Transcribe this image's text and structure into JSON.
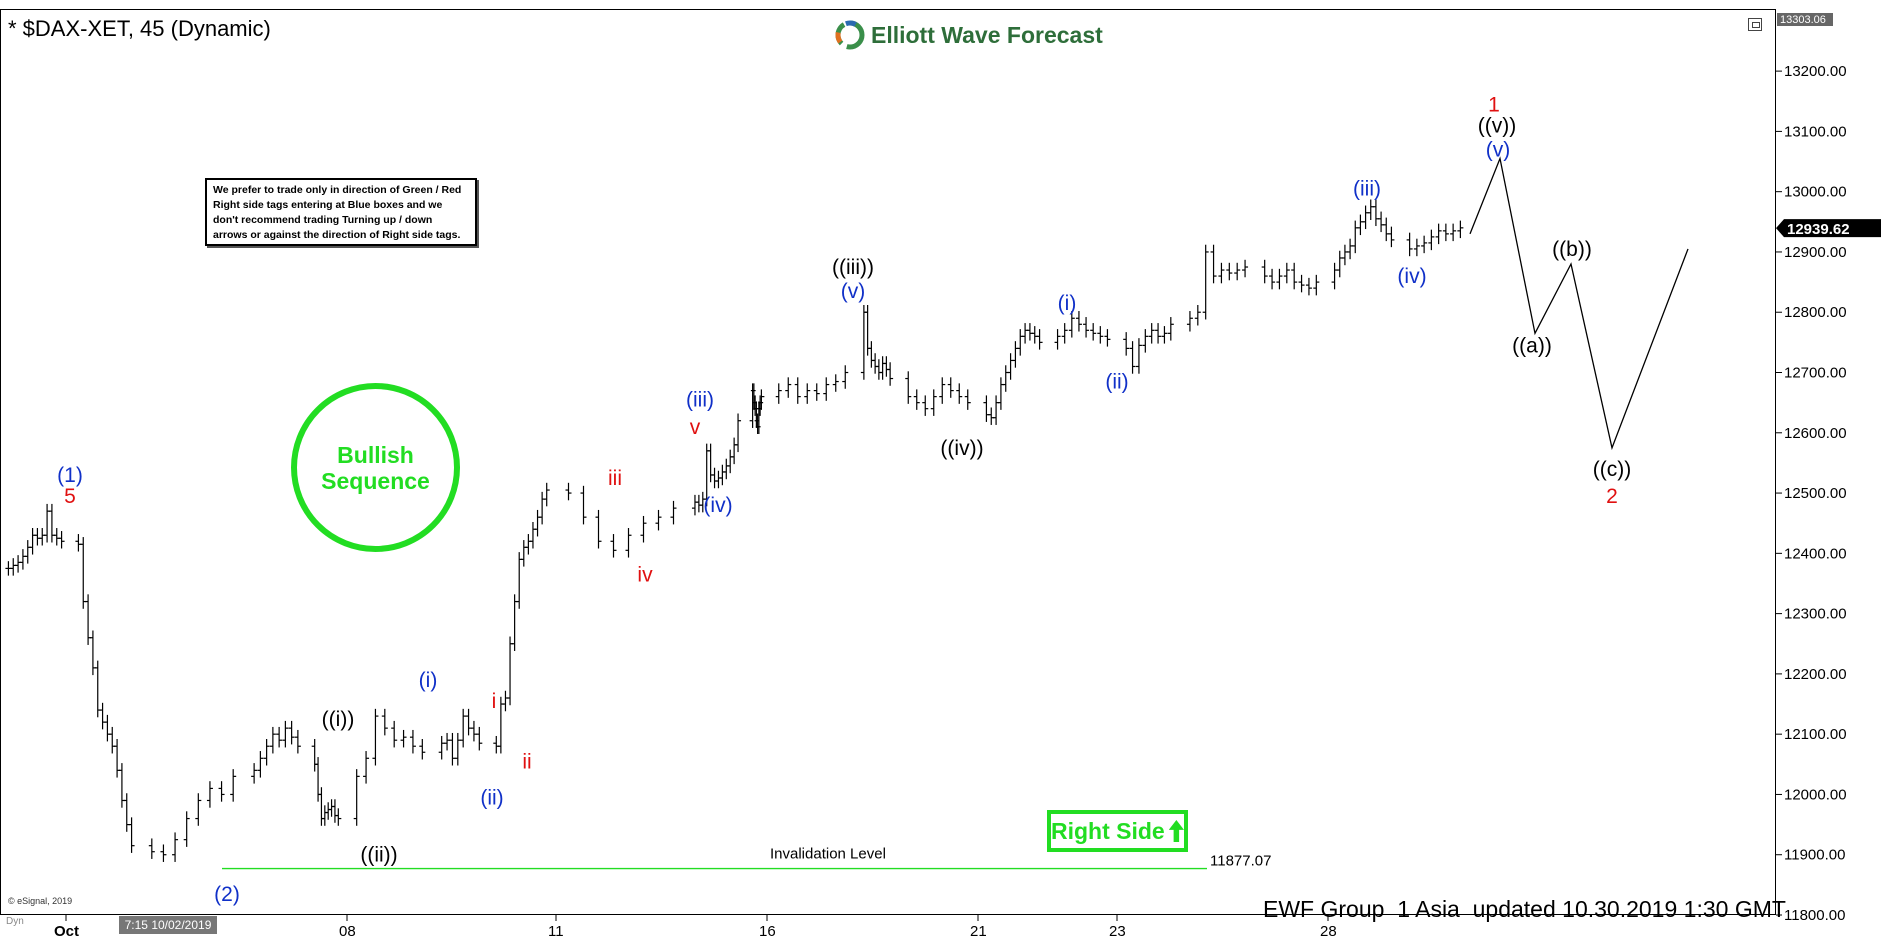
{
  "header": {
    "title": "* $DAX-XET, 45 (Dynamic)",
    "brand": "Elliott Wave Forecast"
  },
  "note": "We prefer to trade only in direction of Green / Red Right side tags entering at Blue boxes and we don't recommend trading Turning up / down arrows or against the direction of Right side tags.",
  "bullish": {
    "line1": "Bullish",
    "line2": "Sequence"
  },
  "right_side_label": "Right Side",
  "footer": "EWF Group  1 Asia  updated 10.30.2019 1:30 GMT",
  "copyright": "© eSignal, 2019",
  "dyn_label": "Dyn",
  "x_cursor_label": "7:15 10/02/2019",
  "colors": {
    "green": "#22dd22",
    "red": "#e01010",
    "blue": "#1030c8",
    "black": "#000000",
    "brand": "#2e6e3a"
  },
  "icons": [
    "ewf-logo-icon",
    "up-arrow-icon",
    "window-restore-icon"
  ],
  "chart_data": {
    "type": "ohlc",
    "symbol": "$DAX-XET",
    "timeframe": "45",
    "y_axis": {
      "range": [
        11800,
        13303.06
      ],
      "ticks": [
        "11800.00",
        "11900.00",
        "12000.00",
        "12100.00",
        "12200.00",
        "12300.00",
        "12400.00",
        "12500.00",
        "12600.00",
        "12700.00",
        "12800.00",
        "12900.00",
        "13000.00",
        "13100.00",
        "13200.00"
      ],
      "top_label": "13303.06",
      "last_price": "12939.62"
    },
    "x_axis": {
      "ticks": [
        "Oct",
        "08",
        "11",
        "16",
        "21",
        "23",
        "28"
      ]
    },
    "path": [
      [
        "2019-10-01",
        12375
      ],
      [
        "2019-10-01",
        12380
      ],
      [
        "2019-10-01",
        12385
      ],
      [
        "2019-10-01",
        12395
      ],
      [
        "2019-10-01",
        12410
      ],
      [
        "2019-10-01",
        12430
      ],
      [
        "2019-10-01",
        12425
      ],
      [
        "2019-10-01",
        12430
      ],
      [
        "2019-10-01",
        12470
      ],
      [
        "2019-10-01",
        12430
      ],
      [
        "2019-10-01",
        12425
      ],
      [
        "2019-10-01",
        12420
      ],
      [
        "2019-10-02",
        12415
      ],
      [
        "2019-10-02",
        12320
      ],
      [
        "2019-10-02",
        12260
      ],
      [
        "2019-10-02",
        12210
      ],
      [
        "2019-10-02",
        12140
      ],
      [
        "2019-10-02",
        12120
      ],
      [
        "2019-10-02",
        12100
      ],
      [
        "2019-10-02",
        12080
      ],
      [
        "2019-10-02",
        12040
      ],
      [
        "2019-10-02",
        11990
      ],
      [
        "2019-10-02",
        11950
      ],
      [
        "2019-10-02",
        11915
      ],
      [
        "2019-10-03",
        11905
      ],
      [
        "2019-10-03",
        11900
      ],
      [
        "2019-10-03",
        11925
      ],
      [
        "2019-10-03",
        11960
      ],
      [
        "2019-10-03",
        11990
      ],
      [
        "2019-10-03",
        12010
      ],
      [
        "2019-10-03",
        12000
      ],
      [
        "2019-10-03",
        12030
      ],
      [
        "2019-10-04",
        12040
      ],
      [
        "2019-10-04",
        12060
      ],
      [
        "2019-10-04",
        12080
      ],
      [
        "2019-10-04",
        12100
      ],
      [
        "2019-10-04",
        12090
      ],
      [
        "2019-10-04",
        12110
      ],
      [
        "2019-10-04",
        12095
      ],
      [
        "2019-10-04",
        12080
      ],
      [
        "2019-10-07",
        12050
      ],
      [
        "2019-10-07",
        12000
      ],
      [
        "2019-10-07",
        11960
      ],
      [
        "2019-10-07",
        11970
      ],
      [
        "2019-10-07",
        11975
      ],
      [
        "2019-10-07",
        11980
      ],
      [
        "2019-10-07",
        11965
      ],
      [
        "2019-10-07",
        11960
      ],
      [
        "2019-10-08",
        12030
      ],
      [
        "2019-10-08",
        12060
      ],
      [
        "2019-10-08",
        12130
      ],
      [
        "2019-10-08",
        12110
      ],
      [
        "2019-10-08",
        12090
      ],
      [
        "2019-10-08",
        12095
      ],
      [
        "2019-10-08",
        12080
      ],
      [
        "2019-10-08",
        12070
      ],
      [
        "2019-10-09",
        12085
      ],
      [
        "2019-10-09",
        12090
      ],
      [
        "2019-10-09",
        12060
      ],
      [
        "2019-10-09",
        12090
      ],
      [
        "2019-10-09",
        12130
      ],
      [
        "2019-10-09",
        12110
      ],
      [
        "2019-10-09",
        12100
      ],
      [
        "2019-10-09",
        12085
      ],
      [
        "2019-10-10",
        12080
      ],
      [
        "2019-10-10",
        12150
      ],
      [
        "2019-10-10",
        12160
      ],
      [
        "2019-10-10",
        12250
      ],
      [
        "2019-10-10",
        12320
      ],
      [
        "2019-10-10",
        12390
      ],
      [
        "2019-10-10",
        12410
      ],
      [
        "2019-10-10",
        12420
      ],
      [
        "2019-10-10",
        12440
      ],
      [
        "2019-10-10",
        12460
      ],
      [
        "2019-10-10",
        12490
      ],
      [
        "2019-10-10",
        12505
      ],
      [
        "2019-10-11",
        12500
      ],
      [
        "2019-10-11",
        12460
      ],
      [
        "2019-10-11",
        12420
      ],
      [
        "2019-10-11",
        12405
      ],
      [
        "2019-10-11",
        12430
      ],
      [
        "2019-10-11",
        12450
      ],
      [
        "2019-10-11",
        12460
      ],
      [
        "2019-10-11",
        12475
      ],
      [
        "2019-10-14",
        12485
      ],
      [
        "2019-10-14",
        12480
      ],
      [
        "2019-10-14",
        12490
      ],
      [
        "2019-10-14",
        12570
      ],
      [
        "2019-10-14",
        12530
      ],
      [
        "2019-10-14",
        12520
      ],
      [
        "2019-10-14",
        12525
      ],
      [
        "2019-10-14",
        12535
      ],
      [
        "2019-10-14",
        12545
      ],
      [
        "2019-10-14",
        12560
      ],
      [
        "2019-10-14",
        12580
      ],
      [
        "2019-10-14",
        12620
      ],
      [
        "2019-10-15",
        12670
      ],
      [
        "2019-10-15",
        12650
      ],
      [
        "2019-10-15",
        12640
      ],
      [
        "2019-10-15",
        12620
      ],
      [
        "2019-10-15",
        12610
      ],
      [
        "2019-10-15",
        12640
      ],
      [
        "2019-10-15",
        12650
      ],
      [
        "2019-10-15",
        12660
      ],
      [
        "2019-10-16",
        12670
      ],
      [
        "2019-10-16",
        12680
      ],
      [
        "2019-10-16",
        12660
      ],
      [
        "2019-10-16",
        12670
      ],
      [
        "2019-10-16",
        12665
      ],
      [
        "2019-10-16",
        12680
      ],
      [
        "2019-10-16",
        12685
      ],
      [
        "2019-10-16",
        12700
      ],
      [
        "2019-10-17",
        12800
      ],
      [
        "2019-10-17",
        12740
      ],
      [
        "2019-10-17",
        12720
      ],
      [
        "2019-10-17",
        12710
      ],
      [
        "2019-10-17",
        12700
      ],
      [
        "2019-10-17",
        12715
      ],
      [
        "2019-10-17",
        12705
      ],
      [
        "2019-10-17",
        12690
      ],
      [
        "2019-10-18",
        12660
      ],
      [
        "2019-10-18",
        12650
      ],
      [
        "2019-10-18",
        12640
      ],
      [
        "2019-10-18",
        12660
      ],
      [
        "2019-10-18",
        12680
      ],
      [
        "2019-10-18",
        12670
      ],
      [
        "2019-10-18",
        12660
      ],
      [
        "2019-10-18",
        12650
      ],
      [
        "2019-10-21",
        12630
      ],
      [
        "2019-10-21",
        12625
      ],
      [
        "2019-10-21",
        12650
      ],
      [
        "2019-10-21",
        12680
      ],
      [
        "2019-10-21",
        12700
      ],
      [
        "2019-10-21",
        12720
      ],
      [
        "2019-10-21",
        12740
      ],
      [
        "2019-10-21",
        12760
      ],
      [
        "2019-10-21",
        12770
      ],
      [
        "2019-10-21",
        12765
      ],
      [
        "2019-10-21",
        12760
      ],
      [
        "2019-10-21",
        12750
      ],
      [
        "2019-10-22",
        12760
      ],
      [
        "2019-10-22",
        12770
      ],
      [
        "2019-10-22",
        12790
      ],
      [
        "2019-10-22",
        12780
      ],
      [
        "2019-10-22",
        12770
      ],
      [
        "2019-10-22",
        12765
      ],
      [
        "2019-10-22",
        12760
      ],
      [
        "2019-10-22",
        12755
      ],
      [
        "2019-10-23",
        12740
      ],
      [
        "2019-10-23",
        12710
      ],
      [
        "2019-10-23",
        12745
      ],
      [
        "2019-10-23",
        12760
      ],
      [
        "2019-10-23",
        12770
      ],
      [
        "2019-10-23",
        12760
      ],
      [
        "2019-10-23",
        12765
      ],
      [
        "2019-10-23",
        12780
      ],
      [
        "2019-10-24",
        12790
      ],
      [
        "2019-10-24",
        12800
      ],
      [
        "2019-10-24",
        12900
      ],
      [
        "2019-10-24",
        12860
      ],
      [
        "2019-10-24",
        12870
      ],
      [
        "2019-10-24",
        12865
      ],
      [
        "2019-10-24",
        12870
      ],
      [
        "2019-10-24",
        12875
      ],
      [
        "2019-10-25",
        12860
      ],
      [
        "2019-10-25",
        12850
      ],
      [
        "2019-10-25",
        12860
      ],
      [
        "2019-10-25",
        12870
      ],
      [
        "2019-10-25",
        12850
      ],
      [
        "2019-10-25",
        12845
      ],
      [
        "2019-10-25",
        12840
      ],
      [
        "2019-10-25",
        12850
      ],
      [
        "2019-10-28",
        12870
      ],
      [
        "2019-10-28",
        12890
      ],
      [
        "2019-10-28",
        12900
      ],
      [
        "2019-10-28",
        12910
      ],
      [
        "2019-10-28",
        12940
      ],
      [
        "2019-10-28",
        12950
      ],
      [
        "2019-10-28",
        12965
      ],
      [
        "2019-10-28",
        12975
      ],
      [
        "2019-10-28",
        12955
      ],
      [
        "2019-10-28",
        12945
      ],
      [
        "2019-10-28",
        12930
      ],
      [
        "2019-10-28",
        12920
      ],
      [
        "2019-10-29",
        12905
      ],
      [
        "2019-10-29",
        12910
      ],
      [
        "2019-10-29",
        12915
      ],
      [
        "2019-10-29",
        12925
      ],
      [
        "2019-10-29",
        12935
      ],
      [
        "2019-10-29",
        12930
      ],
      [
        "2019-10-29",
        12935
      ],
      [
        "2019-10-29",
        12940
      ]
    ],
    "forecast_path": [
      12930,
      13055,
      12765,
      12880,
      12575,
      12905
    ],
    "invalidation": {
      "label": "Invalidation Level",
      "value": "11877.07",
      "y": 11877.07
    },
    "wave_labels": [
      {
        "text": "(1)",
        "color": "blue",
        "y": 12530
      },
      {
        "text": "5",
        "color": "red",
        "y": 12495
      },
      {
        "text": "(2)",
        "color": "blue",
        "y": 11835
      },
      {
        "text": "((i))",
        "color": "black",
        "y": 12125
      },
      {
        "text": "((ii))",
        "color": "black",
        "y": 11900
      },
      {
        "text": "(i)",
        "color": "blue",
        "y": 12190
      },
      {
        "text": "(ii)",
        "color": "blue",
        "y": 11995
      },
      {
        "text": "i",
        "color": "red",
        "y": 12155
      },
      {
        "text": "ii",
        "color": "red",
        "y": 12055
      },
      {
        "text": "iii",
        "color": "red",
        "y": 12525
      },
      {
        "text": "iv",
        "color": "red",
        "y": 12365
      },
      {
        "text": "(iii)",
        "color": "blue",
        "y": 12655
      },
      {
        "text": "v",
        "color": "red",
        "y": 12610
      },
      {
        "text": "(iv)",
        "color": "blue",
        "y": 12480
      },
      {
        "text": "((iii))",
        "color": "black",
        "y": 12875
      },
      {
        "text": "(v)",
        "color": "blue",
        "y": 12835
      },
      {
        "text": "((iv))",
        "color": "black",
        "y": 12575
      },
      {
        "text": "(i)",
        "color": "blue",
        "y": 12815
      },
      {
        "text": "(ii)",
        "color": "blue",
        "y": 12685
      },
      {
        "text": "(iii)",
        "color": "blue",
        "y": 13005
      },
      {
        "text": "(iv)",
        "color": "blue",
        "y": 12860
      },
      {
        "text": "1",
        "color": "red",
        "y": 13145
      },
      {
        "text": "((v))",
        "color": "black",
        "y": 13110
      },
      {
        "text": "(v)",
        "color": "blue",
        "y": 13070
      },
      {
        "text": "((a))",
        "color": "black",
        "y": 12745
      },
      {
        "text": "((b))",
        "color": "black",
        "y": 12905
      },
      {
        "text": "((c))",
        "color": "black",
        "y": 12540
      },
      {
        "text": "2",
        "color": "red",
        "y": 12495
      }
    ]
  }
}
